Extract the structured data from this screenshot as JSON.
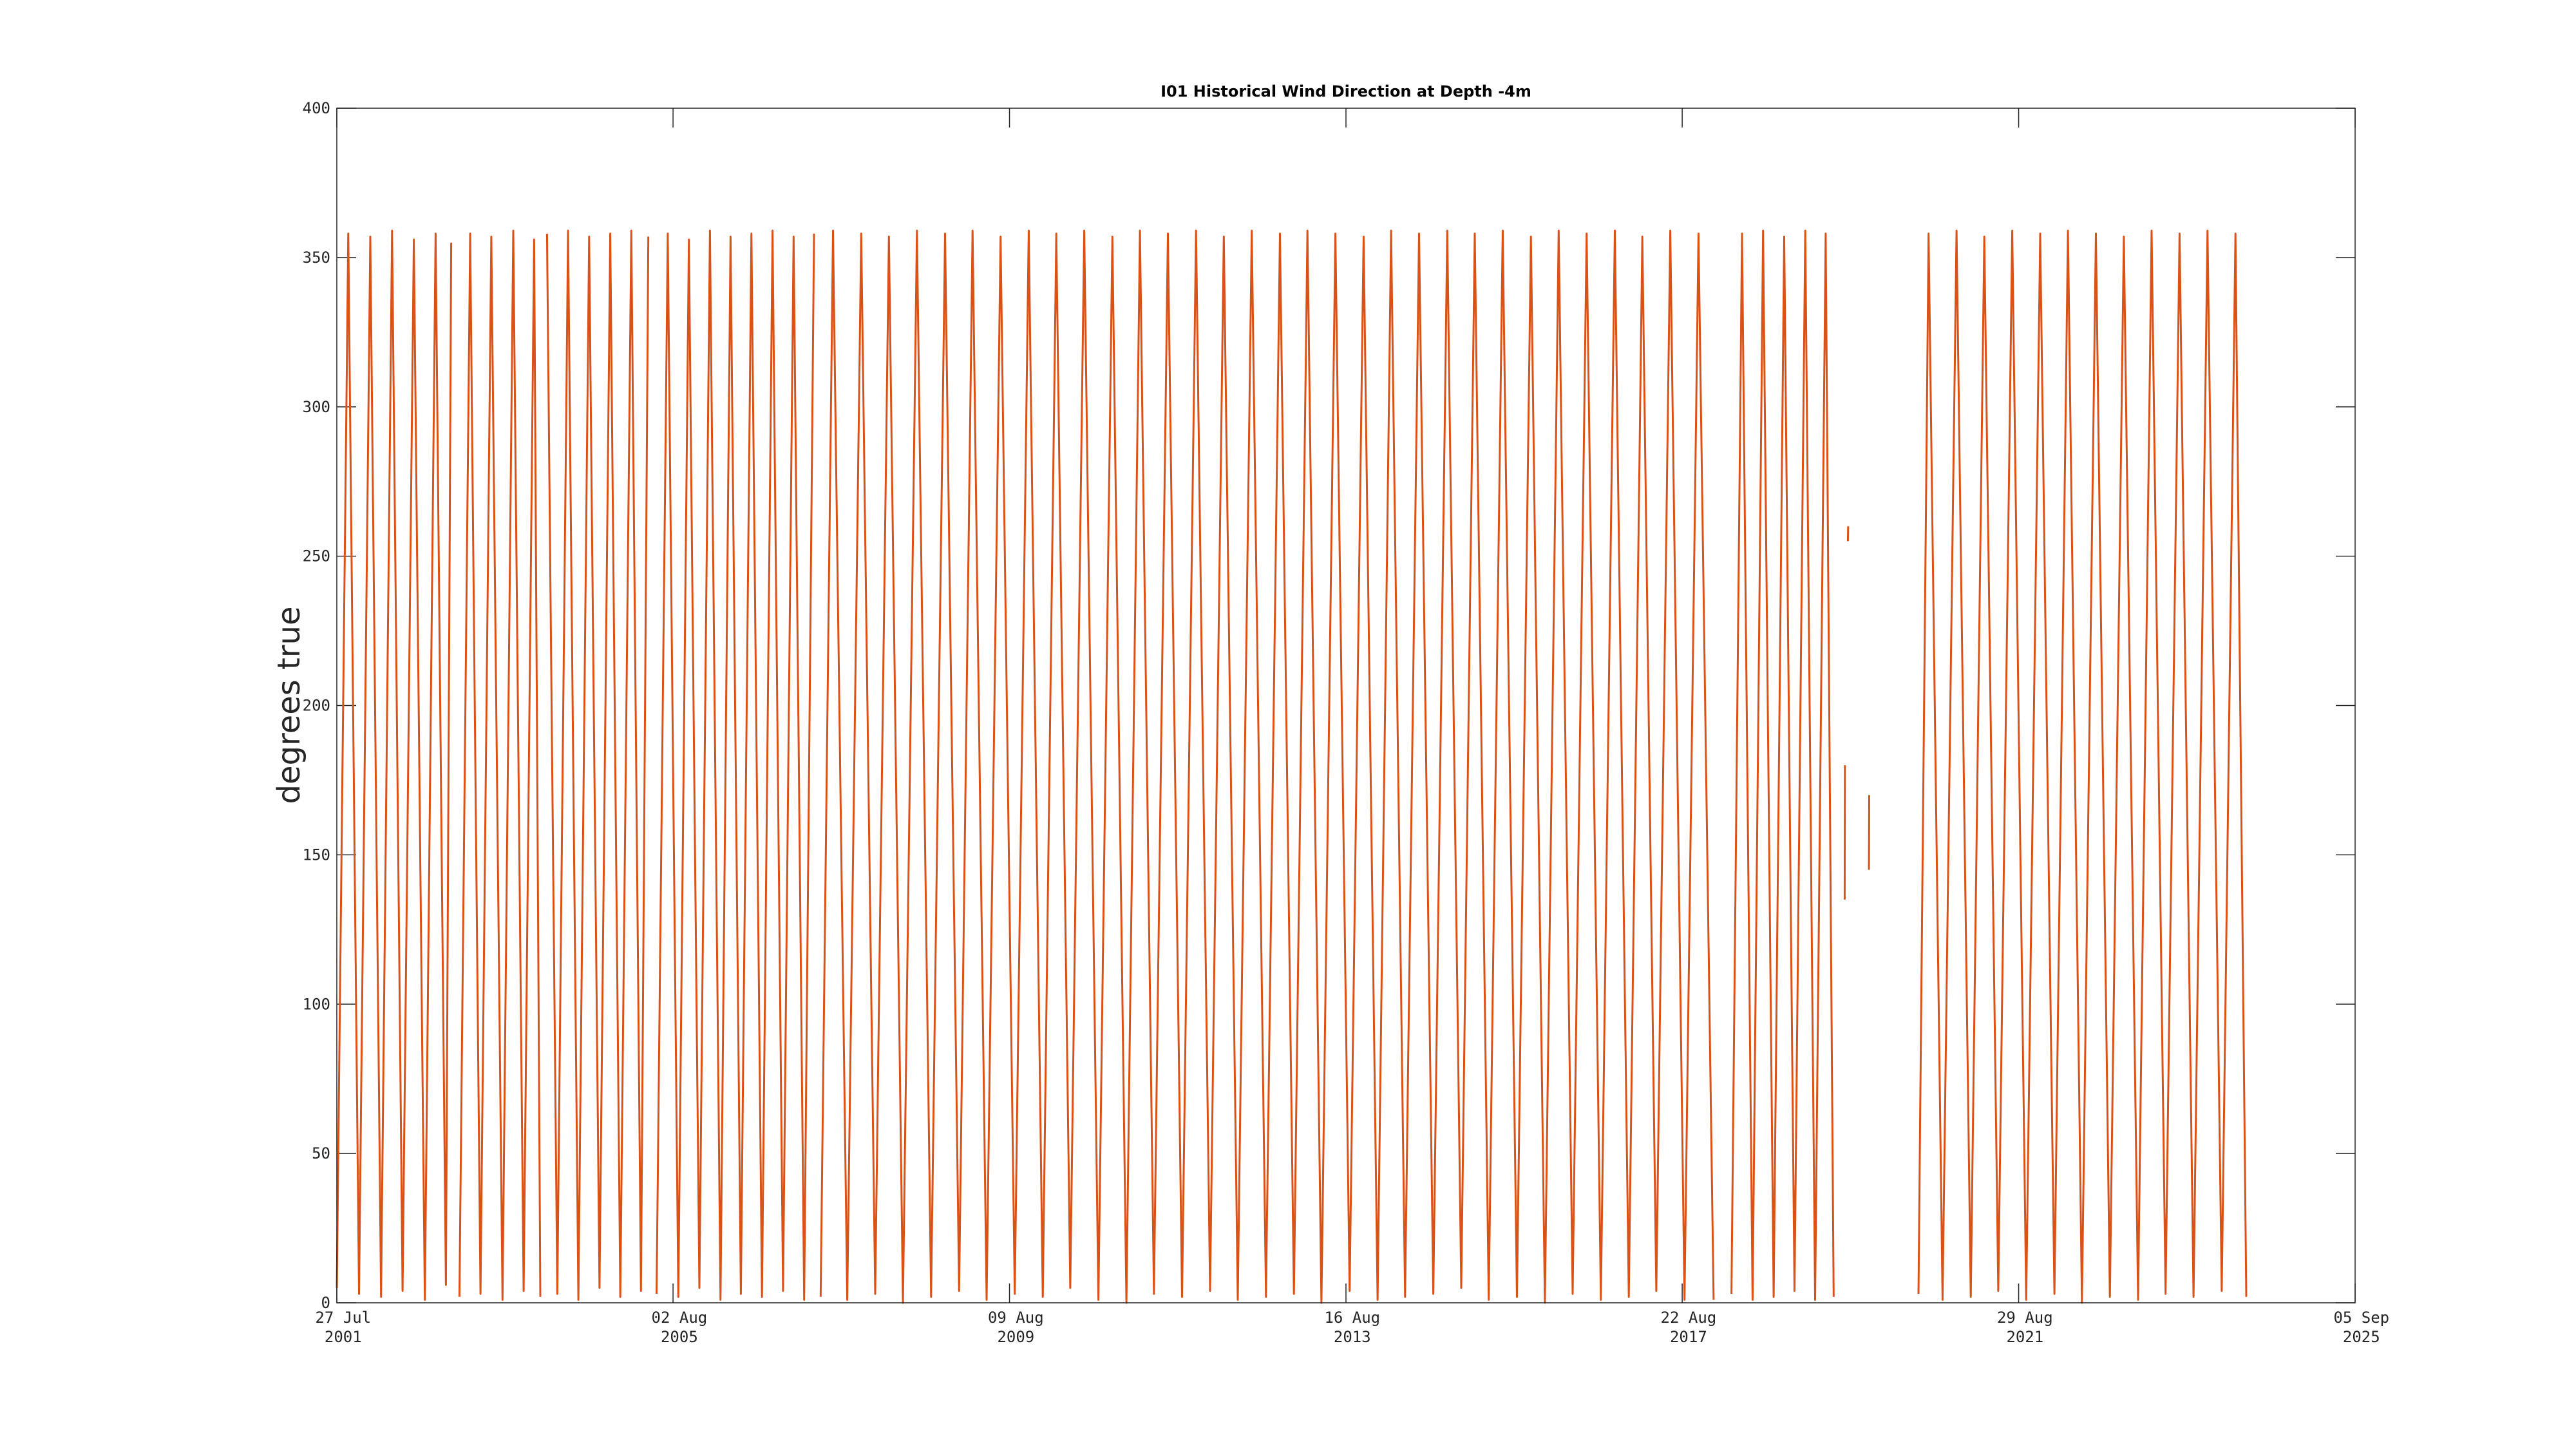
{
  "chart_data": {
    "type": "line",
    "title": "I01 Historical Wind Direction at Depth -4m",
    "ylabel": "degrees true",
    "color": "#d95319",
    "xlim": [
      "2001-07-27",
      "2025-09-05"
    ],
    "xticks": [
      {
        "value": "2001-07-27",
        "label": "27 Jul 2001"
      },
      {
        "value": "2005-08-02",
        "label": "02 Aug 2005"
      },
      {
        "value": "2009-08-09",
        "label": "09 Aug 2009"
      },
      {
        "value": "2013-08-16",
        "label": "16 Aug 2013"
      },
      {
        "value": "2017-08-22",
        "label": "22 Aug 2017"
      },
      {
        "value": "2021-08-29",
        "label": "29 Aug 2021"
      },
      {
        "value": "2025-09-05",
        "label": "05 Sep 2025"
      }
    ],
    "ylim": [
      0,
      400
    ],
    "yticks": [
      0,
      50,
      100,
      150,
      200,
      250,
      300,
      350,
      400
    ],
    "grid": false,
    "x": [
      "2001-07-27",
      "2001-09-15",
      "2001-11-01",
      "2001-12-20",
      "2002-02-05",
      "2002-03-25",
      "2002-05-10",
      "2002-06-28",
      "2002-08-15",
      "2002-10-01",
      "2002-11-15",
      "2002-12-08",
      "2002-12-25",
      "2003-01-13",
      "2003-03-01",
      "2003-04-15",
      "2003-06-01",
      "2003-07-20",
      "2003-09-05",
      "2003-10-20",
      "2003-12-05",
      "2004-01-01",
      "2004-01-15",
      "2004-01-30",
      "2004-03-15",
      "2004-05-01",
      "2004-06-15",
      "2004-08-01",
      "2004-09-15",
      "2004-11-01",
      "2004-12-15",
      "2005-02-01",
      "2005-03-15",
      "2005-04-16",
      "2005-05-05",
      "2005-05-22",
      "2005-07-10",
      "2005-08-25",
      "2005-10-10",
      "2005-11-25",
      "2006-01-10",
      "2006-02-25",
      "2006-04-10",
      "2006-05-25",
      "2006-07-10",
      "2006-08-25",
      "2006-10-10",
      "2006-11-25",
      "2007-01-10",
      "2007-02-25",
      "2007-04-09",
      "2007-04-25",
      "2007-05-08",
      "2007-07-01",
      "2007-09-01",
      "2007-11-01",
      "2008-01-01",
      "2008-03-01",
      "2008-05-01",
      "2008-07-01",
      "2008-09-01",
      "2008-11-01",
      "2009-01-01",
      "2009-03-01",
      "2009-05-01",
      "2009-07-01",
      "2009-09-01",
      "2009-11-01",
      "2010-01-01",
      "2010-03-01",
      "2010-05-01",
      "2010-07-01",
      "2010-09-01",
      "2010-11-01",
      "2011-01-01",
      "2011-03-01",
      "2011-05-01",
      "2011-07-01",
      "2011-09-01",
      "2011-11-01",
      "2012-01-01",
      "2012-03-01",
      "2012-05-01",
      "2012-07-01",
      "2012-09-01",
      "2012-11-01",
      "2013-01-01",
      "2013-03-01",
      "2013-05-01",
      "2013-07-01",
      "2013-09-01",
      "2013-11-01",
      "2014-01-01",
      "2014-03-01",
      "2014-05-01",
      "2014-07-01",
      "2014-09-01",
      "2014-11-01",
      "2015-01-01",
      "2015-03-01",
      "2015-05-01",
      "2015-07-01",
      "2015-09-01",
      "2015-11-01",
      "2016-01-01",
      "2016-03-01",
      "2016-05-01",
      "2016-07-01",
      "2016-09-01",
      "2016-11-01",
      "2017-01-01",
      "2017-03-01",
      "2017-05-01",
      "2017-07-01",
      "2017-09-01",
      "2017-11-01",
      "2018-01-06",
      "2018-02-15",
      "2018-03-25",
      "2018-05-10",
      "2018-06-25",
      "2018-08-10",
      "2018-09-25",
      "2018-11-10",
      "2018-12-25",
      "2019-02-10",
      "2019-03-25",
      "2019-05-10",
      "2019-06-14",
      "2019-07-01",
      "2019-08-01",
      "2019-08-02",
      "2019-08-10",
      "2019-08-15",
      "2019-08-16",
      "2019-09-01",
      "2019-11-15",
      "2019-11-16",
      "2020-01-01",
      "2020-06-18",
      "2020-08-01",
      "2020-10-01",
      "2020-12-01",
      "2021-02-01",
      "2021-04-01",
      "2021-06-01",
      "2021-08-01",
      "2021-10-01",
      "2021-12-01",
      "2022-02-01",
      "2022-04-01",
      "2022-06-01",
      "2022-08-01",
      "2022-10-01",
      "2022-12-01",
      "2023-02-01",
      "2023-04-01",
      "2023-06-01",
      "2023-08-01",
      "2023-10-01",
      "2023-12-01",
      "2024-02-01",
      "2024-04-01",
      "2024-05-18"
    ],
    "values": [
      5,
      358,
      3,
      357,
      2,
      359,
      4,
      356,
      1,
      358,
      6,
      355,
      null,
      2,
      358,
      3,
      357,
      1,
      359,
      4,
      356,
      2,
      null,
      358,
      3,
      359,
      1,
      357,
      5,
      358,
      2,
      359,
      4,
      357,
      null,
      3,
      358,
      2,
      356,
      5,
      359,
      1,
      357,
      3,
      358,
      2,
      359,
      4,
      357,
      1,
      358,
      null,
      2,
      359,
      1,
      358,
      3,
      357,
      0,
      359,
      2,
      358,
      4,
      359,
      1,
      357,
      3,
      359,
      2,
      358,
      5,
      359,
      1,
      357,
      0,
      359,
      3,
      358,
      2,
      359,
      4,
      357,
      1,
      359,
      2,
      358,
      3,
      359,
      0,
      358,
      4,
      357,
      1,
      359,
      2,
      358,
      3,
      359,
      5,
      358,
      1,
      359,
      2,
      357,
      0,
      359,
      3,
      358,
      1,
      359,
      2,
      357,
      4,
      359,
      1,
      358,
      1,
      null,
      3,
      358,
      1,
      359,
      2,
      357,
      4,
      359,
      1,
      358,
      2,
      null,
      135,
      180,
      null,
      255,
      260,
      null,
      145,
      170,
      null,
      3,
      358,
      1,
      359,
      2,
      357,
      4,
      359,
      1,
      358,
      3,
      359,
      0,
      358,
      2,
      357,
      1,
      359,
      3,
      358,
      2,
      359,
      4,
      358,
      2
    ]
  }
}
